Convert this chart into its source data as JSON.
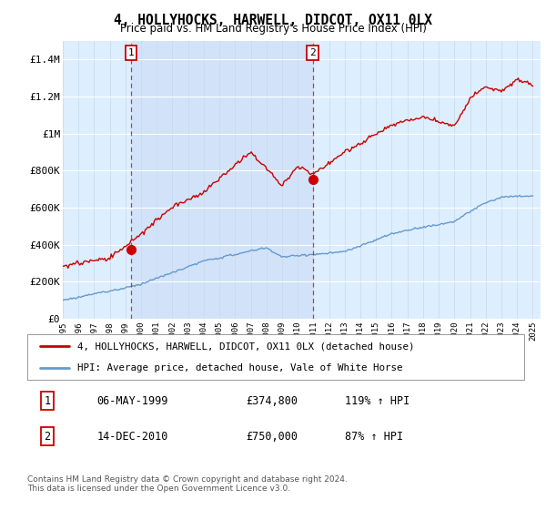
{
  "title": "4, HOLLYHOCKS, HARWELL, DIDCOT, OX11 0LX",
  "subtitle": "Price paid vs. HM Land Registry's House Price Index (HPI)",
  "ylim": [
    0,
    1500000
  ],
  "yticks": [
    0,
    200000,
    400000,
    600000,
    800000,
    1000000,
    1200000,
    1400000
  ],
  "ytick_labels": [
    "£0",
    "£200K",
    "£400K",
    "£600K",
    "£800K",
    "£1M",
    "£1.2M",
    "£1.4M"
  ],
  "sale1_date": 1999.35,
  "sale1_price": 374800,
  "sale1_label": "1",
  "sale1_text": "06-MAY-1999",
  "sale1_price_str": "£374,800",
  "sale1_hpi": "119% ↑ HPI",
  "sale2_date": 2010.95,
  "sale2_price": 750000,
  "sale2_label": "2",
  "sale2_text": "14-DEC-2010",
  "sale2_price_str": "£750,000",
  "sale2_hpi": "87% ↑ HPI",
  "hpi_color": "#6699cc",
  "sale_color": "#cc0000",
  "bg_color": "#ddeeff",
  "legend_label1": "4, HOLLYHOCKS, HARWELL, DIDCOT, OX11 0LX (detached house)",
  "legend_label2": "HPI: Average price, detached house, Vale of White Horse",
  "footer": "Contains HM Land Registry data © Crown copyright and database right 2024.\nThis data is licensed under the Open Government Licence v3.0."
}
